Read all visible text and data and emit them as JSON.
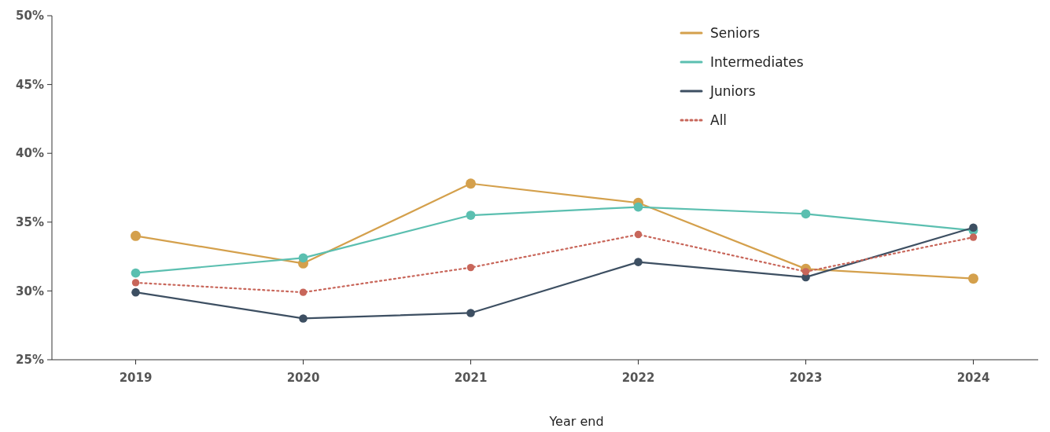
{
  "chart_data": {
    "type": "line",
    "xlabel": "Year end",
    "categories": [
      "2019",
      "2020",
      "2021",
      "2022",
      "2023",
      "2024"
    ],
    "series": [
      {
        "name": "Seniors",
        "color": "#d4a04c",
        "values": [
          34.0,
          32.0,
          37.8,
          36.4,
          31.6,
          30.9
        ]
      },
      {
        "name": "Intermediates",
        "color": "#5bbfb0",
        "values": [
          31.3,
          32.4,
          35.5,
          36.1,
          35.6,
          34.4
        ]
      },
      {
        "name": "Juniors",
        "color": "#3d4f62",
        "values": [
          29.9,
          28.0,
          28.4,
          32.1,
          31.0,
          34.6
        ]
      },
      {
        "name": "All",
        "color": "#c8665a",
        "values": [
          30.6,
          29.9,
          31.7,
          34.1,
          31.4,
          33.9
        ],
        "line_style": "dotted"
      }
    ],
    "ylim": [
      25,
      50
    ],
    "yticks": [
      {
        "value": 25,
        "label": "25%"
      },
      {
        "value": 30,
        "label": "30%"
      },
      {
        "value": 35,
        "label": "35%"
      },
      {
        "value": 40,
        "label": "40%"
      },
      {
        "value": 45,
        "label": "45%"
      },
      {
        "value": 50,
        "label": "50%"
      }
    ],
    "legend": "top right",
    "marker": "circle",
    "line_style": "solid",
    "grid": false
  }
}
